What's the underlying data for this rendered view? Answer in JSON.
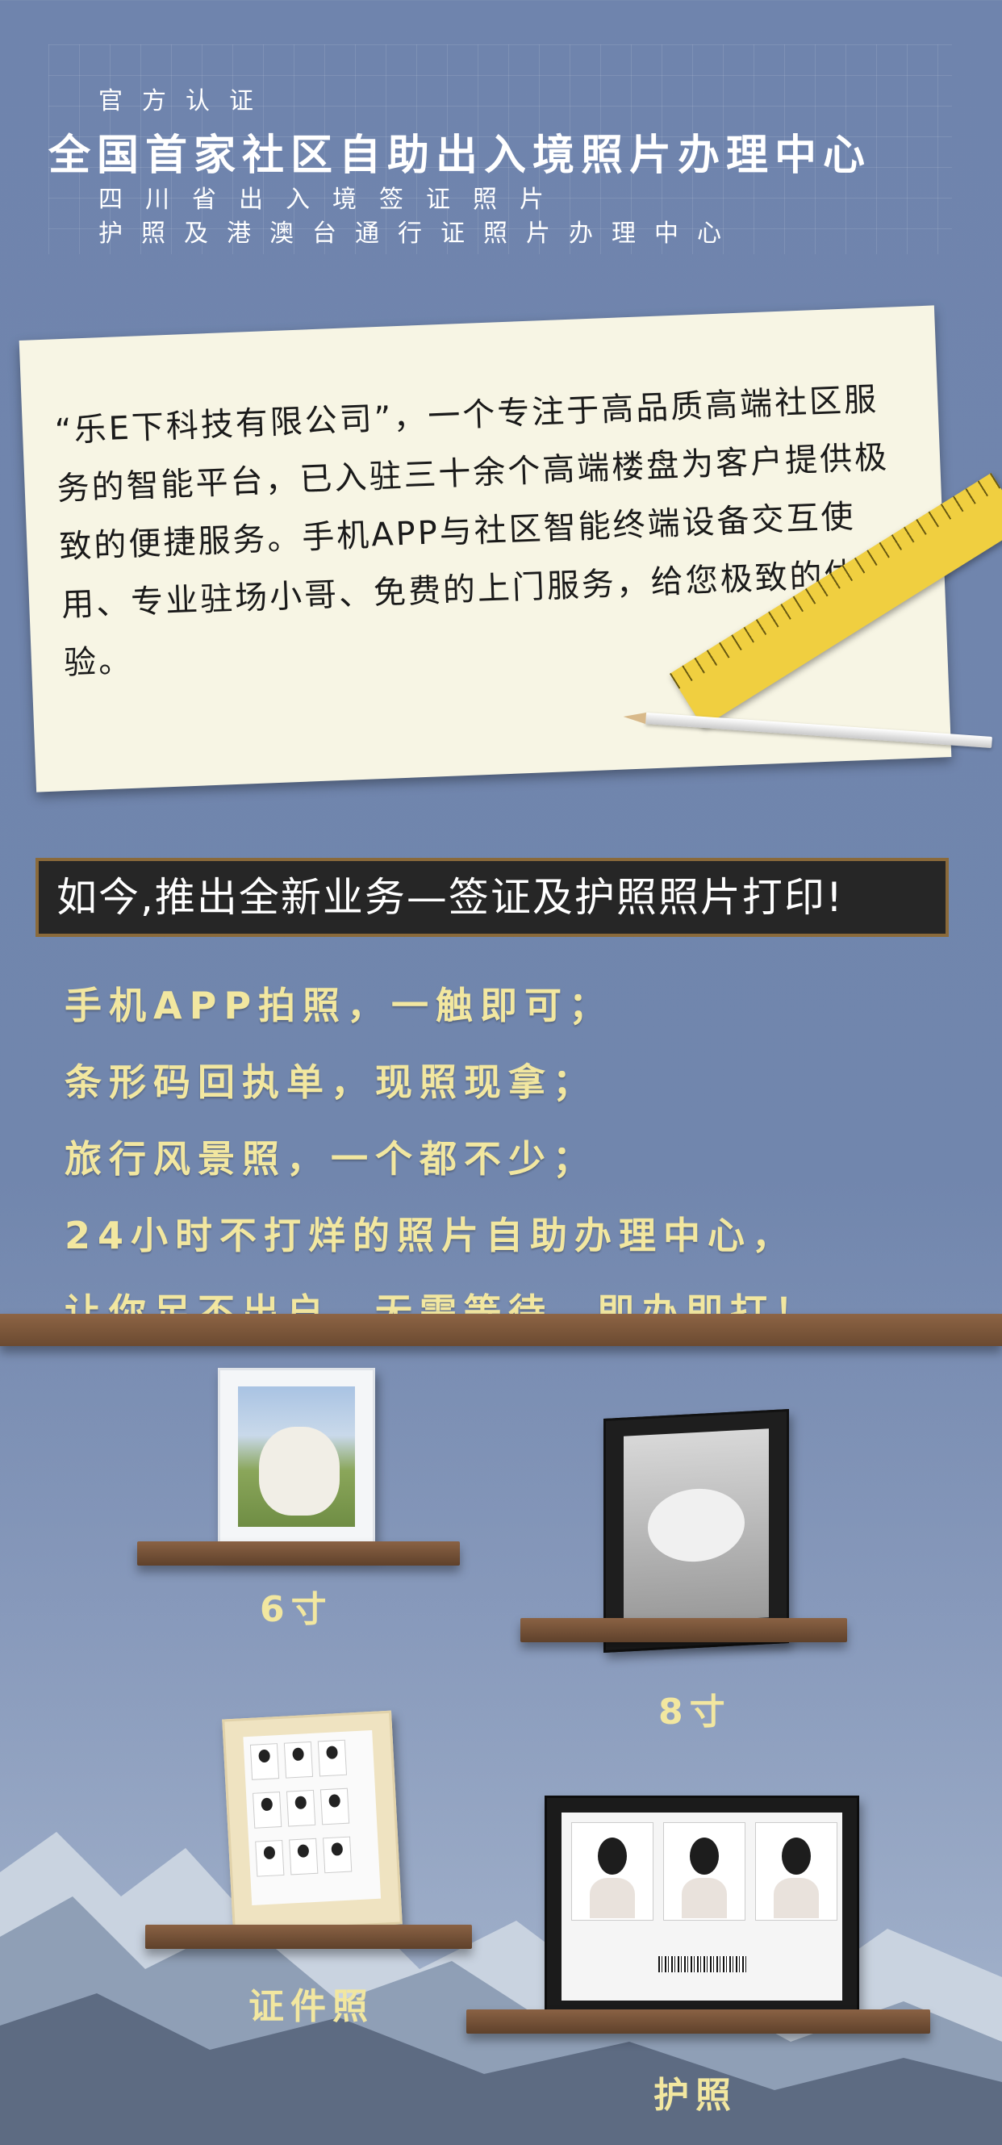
{
  "header": {
    "official": "官方认证",
    "main_title": "全国首家社区自助出入境照片办理中心",
    "sub1": "四川省出入境签证照片",
    "sub2": "护照及港澳台通行证照片办理中心"
  },
  "intro": {
    "text": "“乐E下科技有限公司”，一个专注于高品质高端社区服务的智能平台，已入驻三十余个高端楼盘为客户提供极致的便捷服务。手机APP与社区智能终端设备交互使用、专业驻场小哥、免费的上门服务，给您极致的体验。"
  },
  "banner": {
    "text": "如今,推出全新业务—签证及护照照片打印!"
  },
  "features": [
    "手机APP拍照，一触即可；",
    "条形码回执单，现照现拿；",
    "旅行风景照，一个都不少；",
    "24小时不打烊的照片自助办理中心，",
    "让你足不出户，无需等待，即办即打！"
  ],
  "products": {
    "six_inch": "6寸",
    "eight_inch": "8寸",
    "id_photo": "证件照",
    "passport": "护照"
  },
  "colors": {
    "background": "#7186ad",
    "feature_text": "#f2e7a0",
    "paper": "#f7f5e4",
    "banner_bg": "#262626"
  },
  "icons": {
    "ruler": "ruler-icon",
    "pencil": "pencil-icon"
  }
}
